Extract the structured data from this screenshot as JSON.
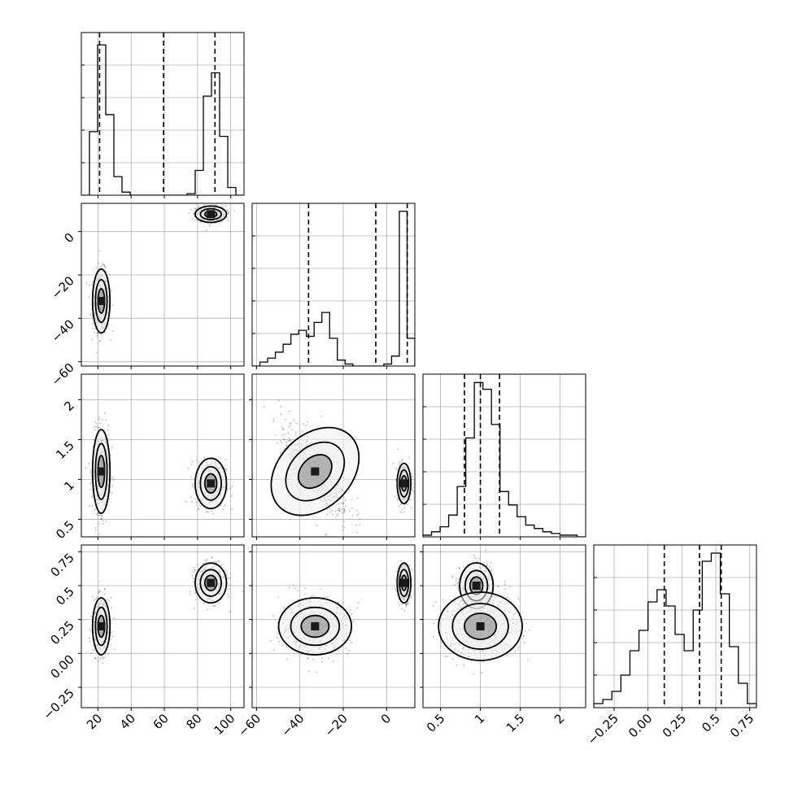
{
  "chart_data": {
    "type": "corner",
    "colors": {
      "line": "#000000",
      "grid": "#b0b0b0",
      "fill_dark": "#1a1a1a",
      "fill_mid": "#808080",
      "fill_light": "#f0f0f0",
      "scatter": "#333333"
    },
    "params": [
      {
        "range": [
          10,
          108
        ],
        "ticks": [
          20,
          40,
          60,
          80,
          100
        ],
        "quantiles": [
          21,
          59.5,
          90.5
        ],
        "hist": [
          0,
          0.41,
          0.97,
          0.52,
          0.12,
          0.02,
          0,
          0,
          0,
          0,
          0,
          0,
          0,
          0.01,
          0.16,
          0.64,
          0.79,
          0.38,
          0.05,
          0
        ],
        "hist_ymax": 1.05,
        "modes": [
          {
            "cx": 22,
            "cy": -32,
            "sx": 2.5,
            "sy": 7,
            "r": 0,
            "n": 500
          },
          {
            "cx": 88,
            "cy": 8,
            "sx": 4.5,
            "sy": 1.8,
            "r": 0,
            "n": 400
          }
        ]
      },
      {
        "range": [
          -62,
          13
        ],
        "ticks": [
          -60,
          -40,
          -20,
          0
        ],
        "quantiles": [
          -36,
          -5,
          9.5
        ],
        "hist": [
          0,
          0.02,
          0.04,
          0.07,
          0.11,
          0.16,
          0.18,
          0.15,
          0.22,
          0.27,
          0.14,
          0.03,
          0.01,
          0,
          0,
          0,
          0,
          0.01,
          0.05,
          0.78,
          0.14
        ],
        "hist_ymax": 0.82,
        "modes": [
          {
            "cx": 8,
            "cy": 0.95,
            "sx": 1.5,
            "sy": 0.12,
            "r": 0,
            "n": 400
          },
          {
            "cx": -33,
            "cy": 1.1,
            "sx": 8,
            "sy": 0.3,
            "r": -0.7,
            "n": 500
          }
        ]
      },
      {
        "range": [
          0.28,
          2.32
        ],
        "ticks": [
          0.5,
          1.0,
          1.5,
          2.0
        ],
        "quantiles": [
          0.8,
          1.0,
          1.24
        ],
        "hist": [
          0.01,
          0.03,
          0.06,
          0.13,
          0.3,
          0.59,
          0.92,
          0.88,
          0.67,
          0.27,
          0.19,
          0.12,
          0.07,
          0.05,
          0.03,
          0.02,
          0.01,
          0.01,
          0
        ],
        "hist_ymax": 0.97,
        "modes": [
          {
            "cx": 0.95,
            "cy": 0.5,
            "sx": 0.1,
            "sy": 0.08,
            "r": 0,
            "n": 400
          },
          {
            "cx": 1.0,
            "cy": 0.2,
            "sx": 0.25,
            "sy": 0.12,
            "r": 0,
            "n": 500
          }
        ]
      },
      {
        "range": [
          -0.4,
          0.8
        ],
        "ticks": [
          -0.25,
          0.0,
          0.25,
          0.5,
          0.75
        ],
        "quantiles": [
          0.12,
          0.38,
          0.54
        ],
        "hist": [
          0.01,
          0.02,
          0.04,
          0.08,
          0.14,
          0.19,
          0.26,
          0.29,
          0.25,
          0.18,
          0.14,
          0.24,
          0.36,
          0.38,
          0.28,
          0.15,
          0.06,
          0.01
        ],
        "hist_ymax": 0.4,
        "modes": []
      }
    ]
  }
}
